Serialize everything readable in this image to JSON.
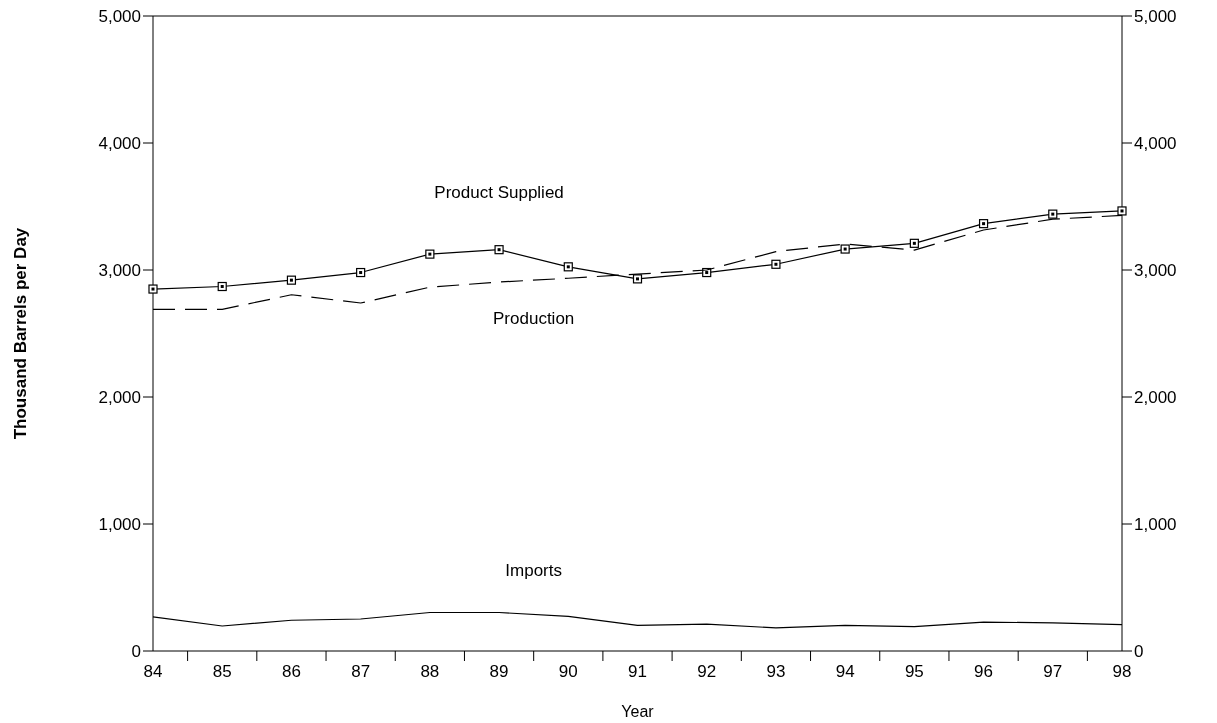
{
  "chart_data": {
    "type": "line",
    "xlabel": "Year",
    "ylabel": "Thousand Barrels per Day",
    "categories": [
      "84",
      "85",
      "86",
      "87",
      "88",
      "89",
      "90",
      "91",
      "92",
      "93",
      "94",
      "95",
      "96",
      "97",
      "98"
    ],
    "ylim": [
      0,
      5000
    ],
    "yticks": [
      {
        "value": 0,
        "label": "0"
      },
      {
        "value": 1000,
        "label": "1,000"
      },
      {
        "value": 2000,
        "label": "2,000"
      },
      {
        "value": 3000,
        "label": "3,000"
      },
      {
        "value": 4000,
        "label": "4,000"
      },
      {
        "value": 5000,
        "label": "5,000"
      }
    ],
    "y2lim": [
      0,
      5000
    ],
    "y2ticks": [
      {
        "value": 0,
        "label": "0"
      },
      {
        "value": 1000,
        "label": "1,000"
      },
      {
        "value": 2000,
        "label": "2,000"
      },
      {
        "value": 3000,
        "label": "3,000"
      },
      {
        "value": 4000,
        "label": "4,000"
      },
      {
        "value": 5000,
        "label": "5,000"
      }
    ],
    "grid": false,
    "series": [
      {
        "name": "Product Supplied",
        "color": "#000000",
        "marker": "square",
        "line_style": "solid",
        "values": [
          2850,
          2870,
          2920,
          2980,
          3125,
          3160,
          3025,
          2930,
          2980,
          3045,
          3165,
          3210,
          3365,
          3440,
          3465
        ]
      },
      {
        "name": "Production",
        "color": "#000000",
        "marker": "none",
        "line_style": "dashed",
        "values": [
          2690,
          2690,
          2805,
          2740,
          2865,
          2905,
          2935,
          2968,
          3000,
          3145,
          3205,
          3157,
          3315,
          3400,
          3430
        ]
      },
      {
        "name": "Imports",
        "color": "#000000",
        "marker": "none",
        "line_style": "solid",
        "values": [
          268,
          197,
          242,
          252,
          303,
          303,
          273,
          202,
          212,
          182,
          202,
          192,
          227,
          222,
          207
        ]
      }
    ]
  }
}
